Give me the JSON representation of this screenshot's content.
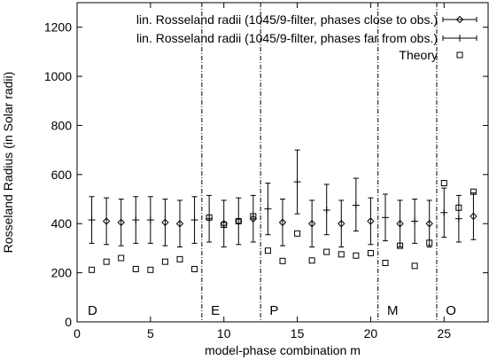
{
  "chart_data": {
    "type": "scatter",
    "title": "",
    "xlabel": "model-phase combination m",
    "ylabel": "Rosseland Radius (in Solar radii)",
    "xlim": [
      0,
      28
    ],
    "ylim": [
      0,
      1300
    ],
    "x_ticks": [
      "0",
      "5",
      "10",
      "15",
      "20",
      "25"
    ],
    "y_ticks": [
      "0",
      "200",
      "400",
      "600",
      "800",
      "1000",
      "1200"
    ],
    "grid": false,
    "legend_position": "top-right",
    "separators": [
      8.5,
      12.5,
      20.5,
      24.5
    ],
    "group_labels": [
      {
        "text": "D",
        "x": 0.6
      },
      {
        "text": "E",
        "x": 9.0
      },
      {
        "text": "P",
        "x": 13.0
      },
      {
        "text": "M",
        "x": 21.0
      },
      {
        "text": "O",
        "x": 25.0
      }
    ],
    "series": [
      {
        "name": "lin. Rosseland radii (1045/9-filter, phases close to obs.)",
        "marker": "diamond",
        "errorbars": true,
        "points": [
          {
            "x": 2,
            "y": 410,
            "lo": 315,
            "hi": 505
          },
          {
            "x": 3,
            "y": 405,
            "lo": 310,
            "hi": 500
          },
          {
            "x": 6,
            "y": 405,
            "lo": 310,
            "hi": 500
          },
          {
            "x": 7,
            "y": 400,
            "lo": 305,
            "hi": 495
          },
          {
            "x": 10,
            "y": 400,
            "lo": 305,
            "hi": 495
          },
          {
            "x": 11,
            "y": 410,
            "lo": 315,
            "hi": 505
          },
          {
            "x": 12,
            "y": 420,
            "lo": 325,
            "hi": 515
          },
          {
            "x": 14,
            "y": 405,
            "lo": 310,
            "hi": 500
          },
          {
            "x": 16,
            "y": 400,
            "lo": 305,
            "hi": 495
          },
          {
            "x": 18,
            "y": 400,
            "lo": 305,
            "hi": 495
          },
          {
            "x": 20,
            "y": 410,
            "lo": 315,
            "hi": 505
          },
          {
            "x": 22,
            "y": 400,
            "lo": 305,
            "hi": 495
          },
          {
            "x": 24,
            "y": 400,
            "lo": 305,
            "hi": 495
          },
          {
            "x": 27,
            "y": 430,
            "lo": 335,
            "hi": 525
          }
        ]
      },
      {
        "name": "lin. Rosseland radii (1045/9-filter, phases far from obs.)",
        "marker": "plus",
        "errorbars": true,
        "points": [
          {
            "x": 1,
            "y": 415,
            "lo": 320,
            "hi": 510
          },
          {
            "x": 4,
            "y": 415,
            "lo": 320,
            "hi": 510
          },
          {
            "x": 5,
            "y": 415,
            "lo": 320,
            "hi": 510
          },
          {
            "x": 8,
            "y": 415,
            "lo": 320,
            "hi": 510
          },
          {
            "x": 9,
            "y": 420,
            "lo": 325,
            "hi": 515
          },
          {
            "x": 13,
            "y": 460,
            "lo": 355,
            "hi": 565
          },
          {
            "x": 15,
            "y": 570,
            "lo": 440,
            "hi": 700
          },
          {
            "x": 17,
            "y": 455,
            "lo": 355,
            "hi": 560
          },
          {
            "x": 19,
            "y": 475,
            "lo": 370,
            "hi": 585
          },
          {
            "x": 21,
            "y": 425,
            "lo": 330,
            "hi": 520
          },
          {
            "x": 23,
            "y": 410,
            "lo": 320,
            "hi": 500
          },
          {
            "x": 25,
            "y": 445,
            "lo": 345,
            "hi": 545
          },
          {
            "x": 26,
            "y": 420,
            "lo": 325,
            "hi": 515
          }
        ]
      },
      {
        "name": "Theory",
        "marker": "square",
        "errorbars": false,
        "points": [
          {
            "x": 1,
            "y": 212
          },
          {
            "x": 2,
            "y": 245
          },
          {
            "x": 3,
            "y": 260
          },
          {
            "x": 4,
            "y": 215
          },
          {
            "x": 5,
            "y": 212
          },
          {
            "x": 6,
            "y": 245
          },
          {
            "x": 7,
            "y": 255
          },
          {
            "x": 8,
            "y": 215
          },
          {
            "x": 9,
            "y": 425
          },
          {
            "x": 10,
            "y": 395
          },
          {
            "x": 11,
            "y": 410
          },
          {
            "x": 12,
            "y": 430
          },
          {
            "x": 13,
            "y": 290
          },
          {
            "x": 14,
            "y": 248
          },
          {
            "x": 15,
            "y": 360
          },
          {
            "x": 16,
            "y": 250
          },
          {
            "x": 17,
            "y": 285
          },
          {
            "x": 18,
            "y": 275
          },
          {
            "x": 19,
            "y": 270
          },
          {
            "x": 20,
            "y": 280
          },
          {
            "x": 21,
            "y": 240
          },
          {
            "x": 22,
            "y": 310
          },
          {
            "x": 23,
            "y": 228
          },
          {
            "x": 24,
            "y": 322
          },
          {
            "x": 25,
            "y": 565
          },
          {
            "x": 26,
            "y": 465
          },
          {
            "x": 27,
            "y": 530
          }
        ]
      }
    ]
  }
}
